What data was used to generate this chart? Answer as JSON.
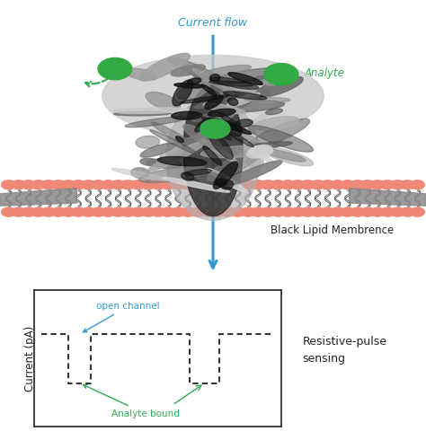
{
  "bg_color": "#ffffff",
  "current_flow_label": "Current flow",
  "current_flow_color": "#3399cc",
  "analyte_label": "Analyte",
  "analyte_color": "#33aa55",
  "green_ball_color": "#33aa44",
  "blm_label": "Black Lipid Membrence",
  "ylabel": "Current (pA)",
  "open_channel_label": "open channel",
  "analyte_bound_label": "Analyte bound",
  "resistive_pulse_label": "Resistive-pulse\nsensing",
  "annotation_color": "#33aa55",
  "lipid_head_color": "#f08878",
  "lipid_tail_color": "#444444",
  "wedge_color": "#888888",
  "protein_outer_color": "#c0c0c0",
  "protein_inner_color": "#333333",
  "trace_color": "#333333"
}
